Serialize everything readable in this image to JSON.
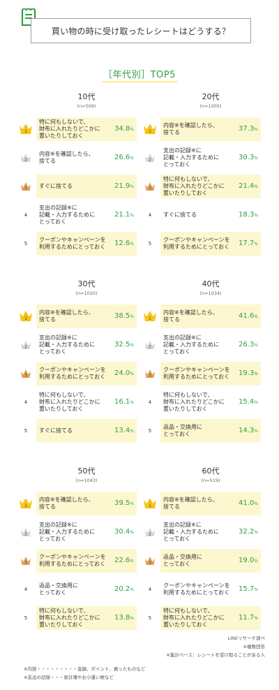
{
  "header": {
    "title": "買い物の時に受け取ったレシートはどうする？"
  },
  "section": {
    "title": "［年代別］TOP5"
  },
  "colors": {
    "gold": "#f5c518",
    "silver": "#d6d6d6",
    "bronze": "#e3a05e",
    "green": "#2f9e47",
    "highlight": "#fdf7cf"
  },
  "chart_data": {
    "type": "table",
    "title": "買い物の時に受け取ったレシートはどうする？",
    "subtitle": "［年代別］TOP5",
    "unit": "%",
    "groups": [
      {
        "age": "10代",
        "n": "(n=506)",
        "items": [
          {
            "rank": "1",
            "label": "特に何もしないで、\n財布に入れたりどこかに\n置いたりしておく",
            "value": "34.8"
          },
          {
            "rank": "2",
            "label": "内容※を確認したら、\n捨てる",
            "value": "26.6"
          },
          {
            "rank": "3",
            "label": "すぐに捨てる",
            "value": "21.9"
          },
          {
            "rank": "4",
            "label": "支出の記録※に\n記載・入力するために\nとっておく",
            "value": "21.1"
          },
          {
            "rank": "5",
            "label": "クーポンやキャンペーンを\n利用するためにとっておく",
            "value": "12.6"
          }
        ]
      },
      {
        "age": "20代",
        "n": "(n=1005)",
        "items": [
          {
            "rank": "1",
            "label": "内容※を確認したら、\n捨てる",
            "value": "37.3"
          },
          {
            "rank": "2",
            "label": "支出の記録※に\n記載・入力するために\nとっておく",
            "value": "30.3"
          },
          {
            "rank": "3",
            "label": "特に何もしないで、\n財布に入れたりどこかに\n置いたりしておく",
            "value": "21.4"
          },
          {
            "rank": "4",
            "label": "すぐに捨てる",
            "value": "18.3"
          },
          {
            "rank": "5",
            "label": "クーポンやキャンペーンを\n利用するためにとっておく",
            "value": "17.7"
          }
        ]
      },
      {
        "age": "30代",
        "n": "(n=1020)",
        "items": [
          {
            "rank": "1",
            "label": "内容※を確認したら、\n捨てる",
            "value": "38.5"
          },
          {
            "rank": "2",
            "label": "支出の記録※に\n記載・入力するために\nとっておく",
            "value": "32.5"
          },
          {
            "rank": "3",
            "label": "クーポンやキャンペーンを\n利用するためにとっておく",
            "value": "24.0"
          },
          {
            "rank": "4",
            "label": "特に何もしないで、\n財布に入れたりどこかに\n置いたりしておく",
            "value": "16.1"
          },
          {
            "rank": "5",
            "label": "すぐに捨てる",
            "value": "13.4"
          }
        ]
      },
      {
        "age": "40代",
        "n": "(n=1034)",
        "items": [
          {
            "rank": "1",
            "label": "内容※を確認したら、\n捨てる",
            "value": "41.6"
          },
          {
            "rank": "2",
            "label": "支出の記録※に\n記載・入力するために\nとっておく",
            "value": "26.3"
          },
          {
            "rank": "3",
            "label": "クーポンやキャンペーンを\n利用するためにとっておく",
            "value": "19.3"
          },
          {
            "rank": "4",
            "label": "特に何もしないで、\n財布に入れたりどこかに\n置いたりしておく",
            "value": "15.4"
          },
          {
            "rank": "5",
            "label": "返品・交換用に\nとっておく",
            "value": "14.3"
          }
        ]
      },
      {
        "age": "50代",
        "n": "(n=1043)",
        "items": [
          {
            "rank": "1",
            "label": "内容※を確認したら、\n捨てる",
            "value": "39.5"
          },
          {
            "rank": "2",
            "label": "支出の記録※に\n記載・入力するために\nとっておく",
            "value": "30.4"
          },
          {
            "rank": "3",
            "label": "クーポンやキャンペーンを\n利用するためにとっておく",
            "value": "22.6"
          },
          {
            "rank": "4",
            "label": "返品・交換用に\nとっておく",
            "value": "20.2"
          },
          {
            "rank": "5",
            "label": "特に何もしないで、\n財布に入れたりどこかに\n置いたりしておく",
            "value": "13.8"
          }
        ]
      },
      {
        "age": "60代",
        "n": "(n=519)",
        "items": [
          {
            "rank": "1",
            "label": "内容※を確認したら、\n捨てる",
            "value": "41.0"
          },
          {
            "rank": "2",
            "label": "支出の記録※に\n記載・入力するために\nとっておく",
            "value": "32.2"
          },
          {
            "rank": "3",
            "label": "返品・交換用に\nとっておく",
            "value": "19.0"
          },
          {
            "rank": "4",
            "label": "クーポンやキャンペーンを\n利用するためにとっておく",
            "value": "15.7"
          },
          {
            "rank": "5",
            "label": "特に何もしないで、\n財布に入れたりどこかに\n置いたりしておく",
            "value": "11.7"
          }
        ]
      }
    ]
  },
  "footer": {
    "source": "LINEリサーチ調べ",
    "multi": "※複数回答",
    "base": "※集計ベース：レシートを受け取ることがある人",
    "note_content": "※内容・・・・・・・・・金額、ポイント、買ったものなど",
    "note_record": "※支出の記録・・・家計簿やお小遣い帳など"
  }
}
